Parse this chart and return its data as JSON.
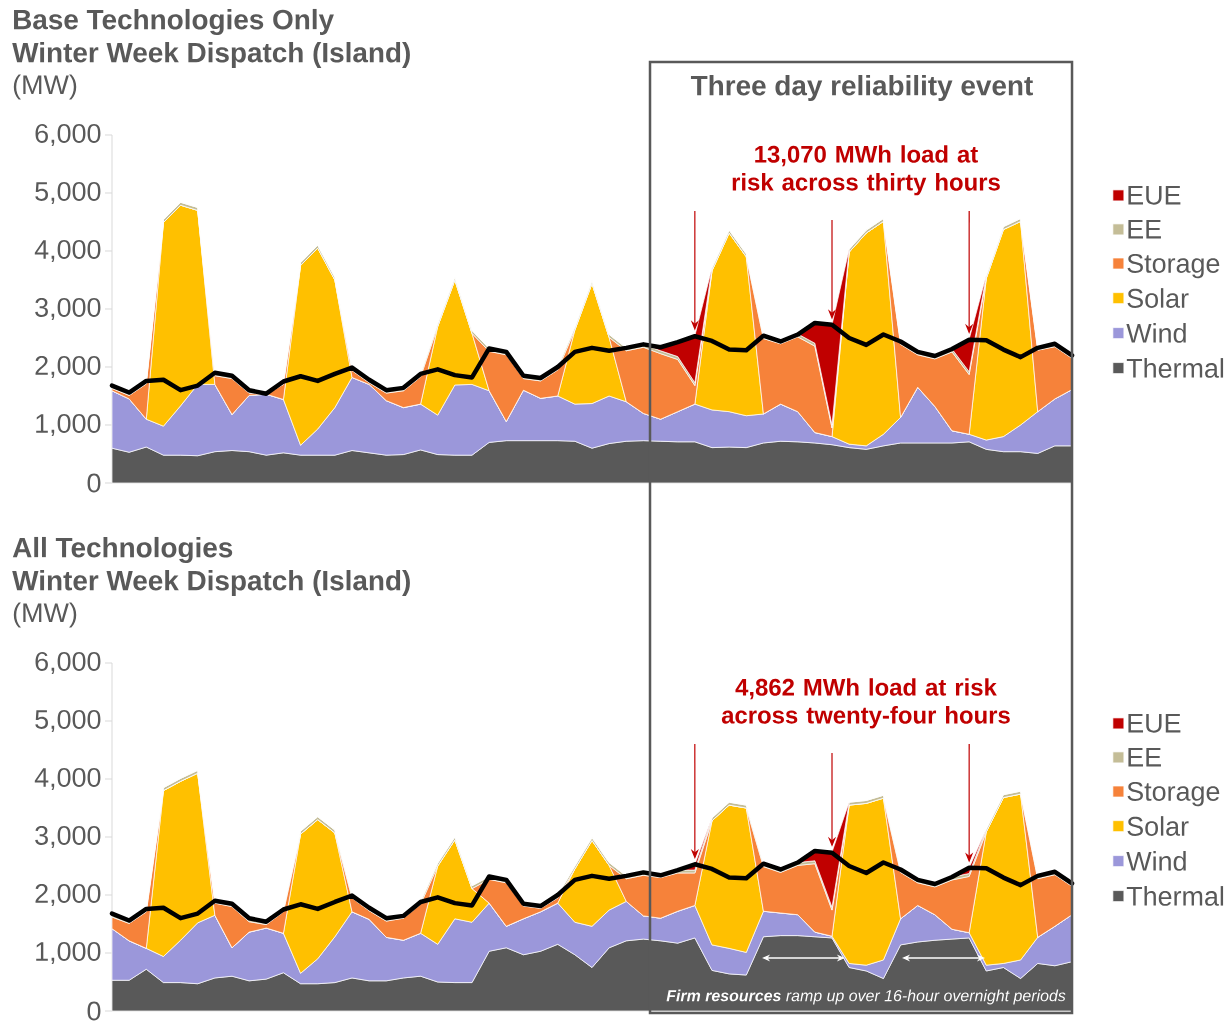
{
  "chart_data": [
    {
      "type": "area",
      "title": "Base Technologies Only",
      "subtitle": "Winter Week Dispatch (Island)",
      "ylabel": "(MW)",
      "stacked": true,
      "legend": "right",
      "tick_labels": "y",
      "annotations": [
        "Three day reliability event",
        "13,070 MWh load at risk across thirty hours"
      ],
      "categories": [
        null,
        null,
        null,
        null,
        null,
        null,
        null,
        null,
        null,
        null,
        null,
        null,
        null,
        null,
        null,
        null,
        null,
        null,
        null,
        null,
        null,
        null,
        null,
        null,
        null,
        null,
        null,
        null,
        null,
        null,
        null,
        null,
        null,
        null,
        null,
        null,
        null,
        null,
        null,
        null,
        null,
        null,
        null,
        null,
        null,
        null,
        null,
        null,
        null,
        null,
        null,
        null,
        null,
        null,
        null,
        null,
        null
      ],
      "ylim": [
        0,
        6000
      ],
      "yticks": [
        0,
        {
          "value": 1000,
          "label": "1,000"
        },
        {
          "value": 2000,
          "label": "2,000"
        },
        {
          "value": 3000,
          "label": "3,000"
        },
        {
          "value": 4000,
          "label": "4,000"
        },
        {
          "value": 5000,
          "label": "5,000"
        },
        {
          "value": 6000,
          "label": "6,000"
        }
      ],
      "series": [
        {
          "name": "Thermal",
          "color": "#595959",
          "values": [
            600,
            530,
            620,
            480,
            480,
            470,
            540,
            560,
            540,
            480,
            520,
            480,
            480,
            480,
            560,
            520,
            480,
            490,
            570,
            490,
            480,
            480,
            700,
            730,
            730,
            730,
            730,
            720,
            600,
            680,
            720,
            730,
            720,
            710,
            710,
            610,
            620,
            610,
            690,
            720,
            710,
            690,
            660,
            610,
            580,
            640,
            690,
            690,
            690,
            690,
            710,
            580,
            540,
            540,
            510,
            640,
            640
          ]
        },
        {
          "name": "Wind",
          "color": "#9b97da",
          "values": [
            990,
            920,
            480,
            500,
            850,
            1230,
            1160,
            620,
            970,
            1050,
            920,
            170,
            450,
            820,
            1260,
            1180,
            940,
            810,
            790,
            680,
            1210,
            1220,
            890,
            330,
            870,
            730,
            770,
            640,
            770,
            820,
            680,
            470,
            380,
            520,
            650,
            650,
            610,
            550,
            500,
            640,
            520,
            180,
            140,
            60,
            60,
            200,
            440,
            960,
            630,
            210,
            130,
            160,
            260,
            460,
            720,
            810,
            970
          ]
        },
        {
          "name": "Solar",
          "color": "#ffc000",
          "values": [
            0,
            0,
            0,
            3510,
            3460,
            3000,
            0,
            0,
            0,
            0,
            0,
            3100,
            3120,
            2200,
            0,
            0,
            0,
            0,
            0,
            1530,
            1810,
            880,
            0,
            0,
            0,
            0,
            0,
            1280,
            2070,
            1010,
            0,
            0,
            0,
            0,
            0,
            2400,
            3080,
            2740,
            0,
            0,
            0,
            0,
            0,
            3310,
            3670,
            3670,
            0,
            0,
            0,
            0,
            0,
            2790,
            3570,
            3510,
            0,
            0,
            0
          ]
        },
        {
          "name": "Storage",
          "color": "#f6823a",
          "values": [
            40,
            60,
            610,
            0,
            0,
            0,
            150,
            620,
            40,
            0,
            260,
            0,
            0,
            0,
            120,
            30,
            130,
            290,
            470,
            0,
            0,
            0,
            680,
            1150,
            200,
            300,
            450,
            0,
            0,
            0,
            880,
            1140,
            1130,
            900,
            320,
            0,
            0,
            0,
            1300,
            1040,
            1290,
            1490,
            150,
            0,
            0,
            0,
            1260,
            560,
            820,
            1360,
            1030,
            0,
            0,
            0,
            1060,
            900,
            540
          ]
        },
        {
          "name": "EE",
          "color": "#c4bd97",
          "values": [
            50,
            50,
            50,
            50,
            50,
            50,
            50,
            50,
            50,
            50,
            50,
            50,
            50,
            50,
            50,
            50,
            50,
            50,
            50,
            50,
            50,
            50,
            50,
            50,
            50,
            50,
            50,
            50,
            50,
            50,
            50,
            50,
            50,
            50,
            50,
            50,
            50,
            50,
            50,
            50,
            50,
            50,
            50,
            50,
            50,
            50,
            50,
            50,
            50,
            50,
            50,
            50,
            50,
            50,
            50,
            50,
            50
          ]
        },
        {
          "name": "EUE",
          "color": "#c00000",
          "values": [
            0,
            0,
            0,
            0,
            0,
            0,
            0,
            0,
            0,
            0,
            0,
            0,
            0,
            0,
            0,
            0,
            0,
            0,
            0,
            0,
            0,
            0,
            0,
            0,
            0,
            0,
            0,
            0,
            0,
            0,
            0,
            0,
            60,
            260,
            810,
            0,
            0,
            0,
            0,
            0,
            0,
            350,
            1730,
            0,
            0,
            0,
            0,
            0,
            0,
            0,
            560,
            0,
            0,
            0,
            0,
            0,
            0
          ]
        },
        {
          "type": "line",
          "color": "#000000",
          "values": [
            1680,
            1560,
            1760,
            1780,
            1600,
            1680,
            1900,
            1850,
            1600,
            1540,
            1750,
            1840,
            1760,
            1880,
            1990,
            1780,
            1600,
            1640,
            1880,
            1960,
            1860,
            1820,
            2320,
            2260,
            1850,
            1810,
            2000,
            2260,
            2330,
            2280,
            2330,
            2390,
            2340,
            2430,
            2530,
            2450,
            2300,
            2290,
            2540,
            2440,
            2560,
            2760,
            2730,
            2500,
            2380,
            2560,
            2440,
            2260,
            2190,
            2310,
            2470,
            2460,
            2300,
            2170,
            2330,
            2400,
            2200
          ]
        }
      ]
    },
    {
      "type": "area",
      "title": "All Technologies",
      "subtitle": "Winter Week Dispatch (Island)",
      "ylabel": "(MW)",
      "stacked": true,
      "legend": "right",
      "tick_labels": "y",
      "annotations": [
        "4,862 MWh load at risk across twenty-four hours",
        "**Firm resources** ramp up over 16-hour overnight periods"
      ],
      "categories": [
        null,
        null,
        null,
        null,
        null,
        null,
        null,
        null,
        null,
        null,
        null,
        null,
        null,
        null,
        null,
        null,
        null,
        null,
        null,
        null,
        null,
        null,
        null,
        null,
        null,
        null,
        null,
        null,
        null,
        null,
        null,
        null,
        null,
        null,
        null,
        null,
        null,
        null,
        null,
        null,
        null,
        null,
        null,
        null,
        null,
        null,
        null,
        null,
        null,
        null,
        null,
        null,
        null,
        null,
        null,
        null,
        null
      ],
      "ylim": [
        0,
        6000
      ],
      "yticks": [
        0,
        {
          "value": 1000,
          "label": "1,000"
        },
        {
          "value": 2000,
          "label": "2,000"
        },
        {
          "value": 3000,
          "label": "3,000"
        },
        {
          "value": 4000,
          "label": "4,000"
        },
        {
          "value": 5000,
          "label": "5,000"
        },
        {
          "value": 6000,
          "label": "6,000"
        }
      ],
      "series": [
        {
          "name": "Thermal",
          "color": "#595959",
          "values": [
            530,
            530,
            720,
            490,
            490,
            470,
            570,
            600,
            520,
            550,
            660,
            470,
            470,
            490,
            570,
            520,
            520,
            570,
            600,
            500,
            490,
            490,
            1030,
            1090,
            970,
            1030,
            1150,
            970,
            750,
            1090,
            1210,
            1240,
            1210,
            1170,
            1260,
            700,
            640,
            620,
            1280,
            1300,
            1300,
            1280,
            1260,
            750,
            690,
            560,
            1140,
            1190,
            1220,
            1240,
            1260,
            690,
            750,
            560,
            820,
            780,
            850
          ]
        },
        {
          "name": "Wind",
          "color": "#9b97da",
          "values": [
            890,
            680,
            360,
            450,
            730,
            1050,
            1080,
            490,
            840,
            880,
            680,
            180,
            430,
            790,
            1140,
            1060,
            750,
            650,
            740,
            650,
            1100,
            1040,
            830,
            370,
            620,
            680,
            710,
            560,
            710,
            650,
            680,
            400,
            390,
            550,
            560,
            440,
            440,
            390,
            440,
            390,
            360,
            80,
            30,
            70,
            100,
            320,
            450,
            630,
            440,
            170,
            90,
            100,
            70,
            320,
            450,
            680,
            810
          ]
        },
        {
          "name": "Solar",
          "color": "#ffc000",
          "values": [
            0,
            0,
            0,
            2860,
            2740,
            2580,
            0,
            0,
            0,
            0,
            0,
            2400,
            2400,
            1790,
            0,
            0,
            0,
            0,
            0,
            1350,
            1360,
            580,
            0,
            0,
            0,
            0,
            0,
            920,
            1480,
            770,
            0,
            0,
            0,
            0,
            0,
            2140,
            2470,
            2490,
            0,
            0,
            0,
            0,
            0,
            2730,
            2790,
            2790,
            0,
            0,
            0,
            0,
            0,
            2300,
            2860,
            2860,
            0,
            0,
            0
          ]
        },
        {
          "name": "Storage",
          "color": "#f6823a",
          "values": [
            200,
            300,
            630,
            0,
            0,
            0,
            210,
            710,
            180,
            60,
            370,
            0,
            0,
            0,
            240,
            150,
            280,
            380,
            500,
            0,
            0,
            0,
            410,
            750,
            220,
            60,
            90,
            0,
            0,
            0,
            390,
            700,
            700,
            660,
            560,
            0,
            0,
            0,
            770,
            700,
            850,
            1180,
            450,
            0,
            0,
            0,
            800,
            390,
            480,
            850,
            970,
            0,
            0,
            0,
            1010,
            890,
            490
          ]
        },
        {
          "name": "EE",
          "color": "#c4bd97",
          "values": [
            50,
            50,
            50,
            50,
            50,
            50,
            50,
            50,
            50,
            50,
            50,
            50,
            50,
            50,
            50,
            50,
            50,
            50,
            50,
            50,
            50,
            50,
            50,
            50,
            50,
            50,
            50,
            50,
            50,
            50,
            50,
            50,
            50,
            50,
            50,
            50,
            50,
            50,
            50,
            50,
            50,
            50,
            50,
            50,
            50,
            50,
            50,
            50,
            50,
            50,
            50,
            50,
            50,
            50,
            50,
            50,
            50
          ]
        },
        {
          "name": "EUE",
          "color": "#c00000",
          "values": [
            0,
            0,
            0,
            0,
            0,
            0,
            0,
            0,
            0,
            0,
            0,
            0,
            0,
            0,
            0,
            0,
            0,
            0,
            0,
            0,
            0,
            0,
            0,
            0,
            0,
            0,
            0,
            0,
            0,
            0,
            0,
            0,
            0,
            0,
            100,
            0,
            0,
            0,
            0,
            0,
            0,
            160,
            950,
            0,
            0,
            0,
            0,
            0,
            0,
            0,
            100,
            0,
            0,
            0,
            0,
            0,
            0
          ]
        },
        {
          "type": "line",
          "color": "#000000",
          "values": [
            1680,
            1560,
            1760,
            1780,
            1600,
            1680,
            1900,
            1850,
            1600,
            1540,
            1750,
            1840,
            1760,
            1880,
            1990,
            1780,
            1600,
            1640,
            1880,
            1960,
            1860,
            1820,
            2320,
            2260,
            1850,
            1810,
            2000,
            2260,
            2330,
            2280,
            2330,
            2390,
            2340,
            2430,
            2530,
            2450,
            2300,
            2290,
            2540,
            2440,
            2560,
            2760,
            2730,
            2500,
            2380,
            2560,
            2440,
            2260,
            2190,
            2310,
            2470,
            2460,
            2300,
            2170,
            2330,
            2400,
            2200
          ]
        }
      ]
    }
  ]
}
